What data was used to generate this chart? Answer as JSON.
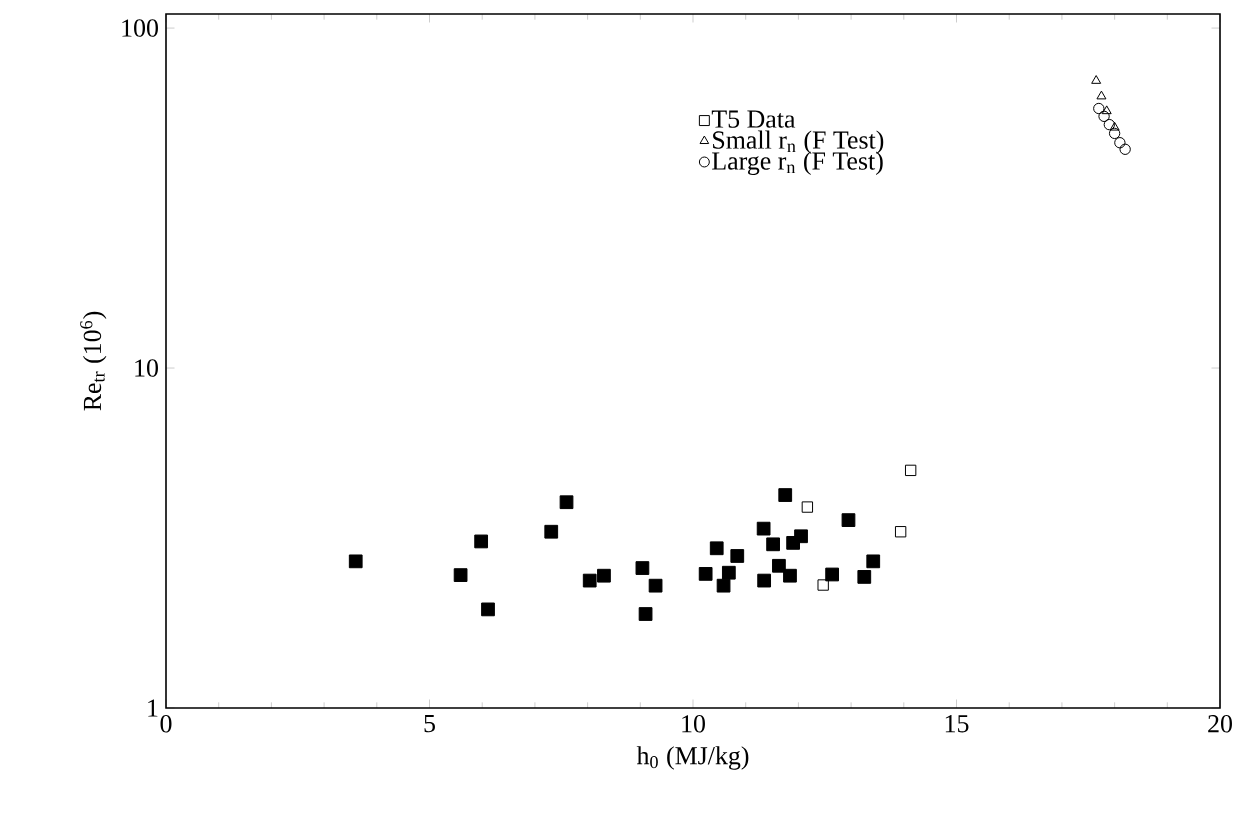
{
  "chart_data": {
    "type": "scatter",
    "xlabel": "h$_{0}$ (MJ/kg)",
    "ylabel": "Re$_{tr}$ (10$^{6}$)",
    "xlim": [
      0,
      20
    ],
    "xticks": [
      0,
      5,
      10,
      15,
      20
    ],
    "ylim": [
      1,
      110
    ],
    "yticks": [
      1,
      10,
      100
    ],
    "log": "y",
    "grid": false,
    "legend": "top",
    "series": [
      {
        "color": "#000000",
        "marker": "square",
        "x": [
          3.6,
          5.59,
          5.98,
          6.11,
          7.31,
          7.6,
          8.04,
          8.31,
          9.04,
          9.29,
          9.1,
          10.24,
          10.45,
          10.58,
          10.68,
          10.84,
          11.34,
          11.35,
          11.52,
          11.63,
          11.75,
          11.84,
          11.9,
          12.05,
          12.64,
          12.95,
          13.25,
          13.42
        ],
        "values": [
          2.7,
          2.46,
          3.09,
          1.95,
          3.3,
          4.03,
          2.37,
          2.45,
          2.58,
          2.29,
          1.89,
          2.48,
          2.95,
          2.29,
          2.5,
          2.8,
          3.37,
          2.37,
          3.03,
          2.62,
          4.23,
          2.45,
          3.06,
          3.2,
          2.47,
          3.57,
          2.43,
          2.7
        ]
      },
      {
        "name": "T5 Data",
        "color": "#000000",
        "marker": "square",
        "x": [
          14.13,
          12.17,
          13.94,
          12.47
        ],
        "values": [
          5.0,
          3.9,
          3.3,
          2.3
        ]
      },
      {
        "name": "Small r$_{n}$ (F Test)",
        "color": "#000000",
        "marker": "triangle",
        "x": [
          17.65,
          17.75,
          17.85,
          18.0
        ],
        "values": [
          70,
          63,
          57,
          51
        ]
      },
      {
        "name": "Large r$_{n}$ (F Test)",
        "color": "#000000",
        "marker": "circle",
        "x": [
          17.7,
          17.8,
          17.9,
          18.0,
          18.1,
          18.2
        ],
        "values": [
          58,
          55,
          52,
          49,
          46,
          44
        ]
      }
    ]
  }
}
